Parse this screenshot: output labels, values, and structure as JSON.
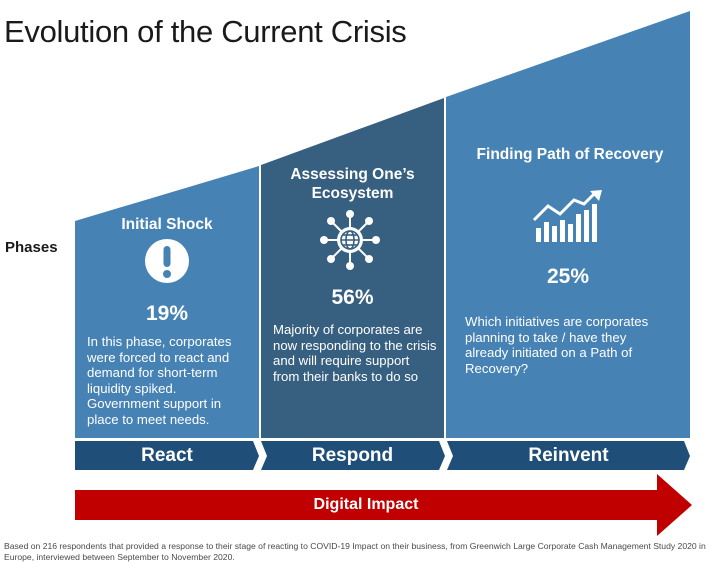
{
  "title": "Evolution of the Current Crisis",
  "phases_label": "Phases",
  "stages": [
    {
      "title": "Initial Shock",
      "icon": "exclamation-icon",
      "percent": "19%",
      "description": "In this phase, corporates were forced to react and demand for short-term liquidity spiked. Government support in place to meet needs.",
      "phase": "React"
    },
    {
      "title": "Assessing One’s Ecosystem",
      "icon": "network-globe-icon",
      "percent": "56%",
      "description": "Majority of corporates are now responding to the crisis and will require support from their banks to do so",
      "phase": "Respond"
    },
    {
      "title": "Finding Path of Recovery",
      "icon": "growth-chart-icon",
      "percent": "25%",
      "description": "Which initiatives are corporates planning to take / have they already initiated on a Path of Recovery?",
      "phase": "Reinvent"
    }
  ],
  "digital_impact": "Digital Impact",
  "footnote": "Based on 216 respondents that provided a response to their stage of reacting to COVID-19 Impact on their business, from Greenwich Large Corporate Cash Management Study 2020 in Europe, interviewed between September to November 2020.",
  "colors": {
    "panel_light": "#4682b4",
    "panel_dark": "#365f80",
    "phase_bar": "#1f4e79",
    "digital_arrow": "#c00000"
  }
}
